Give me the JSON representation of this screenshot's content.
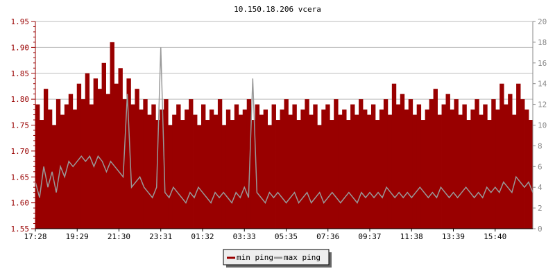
{
  "chart_data": {
    "type": "area",
    "title": "10.150.18.206 vcera",
    "x_tick_labels": [
      "17:28",
      "19:29",
      "21:30",
      "23:31",
      "01:32",
      "03:33",
      "05:35",
      "07:36",
      "09:37",
      "11:38",
      "13:39",
      "15:40"
    ],
    "y_left": {
      "ylim": [
        1.55,
        1.95
      ],
      "ticks": [
        "1.55",
        "1.60",
        "1.65",
        "1.70",
        "1.75",
        "1.80",
        "1.85",
        "1.90",
        "1.95"
      ],
      "color": "#990000"
    },
    "y_right": {
      "ylim": [
        0,
        20
      ],
      "ticks": [
        "0",
        "2",
        "4",
        "6",
        "8",
        "10",
        "12",
        "14",
        "16",
        "18",
        "20"
      ],
      "color": "#888888"
    },
    "grid": true,
    "legend": "bottom-center",
    "series": [
      {
        "name": "min ping",
        "axis": "left",
        "color": "#990000",
        "values": [
          1.79,
          1.76,
          1.82,
          1.78,
          1.75,
          1.8,
          1.77,
          1.79,
          1.81,
          1.78,
          1.83,
          1.8,
          1.85,
          1.79,
          1.84,
          1.82,
          1.87,
          1.81,
          1.91,
          1.83,
          1.86,
          1.8,
          1.84,
          1.79,
          1.82,
          1.78,
          1.8,
          1.77,
          1.79,
          1.76,
          1.78,
          1.8,
          1.75,
          1.77,
          1.79,
          1.76,
          1.78,
          1.8,
          1.77,
          1.75,
          1.79,
          1.76,
          1.78,
          1.77,
          1.8,
          1.75,
          1.78,
          1.76,
          1.79,
          1.77,
          1.78,
          1.8,
          1.76,
          1.79,
          1.77,
          1.78,
          1.75,
          1.79,
          1.76,
          1.78,
          1.8,
          1.77,
          1.79,
          1.76,
          1.78,
          1.8,
          1.77,
          1.79,
          1.75,
          1.78,
          1.79,
          1.76,
          1.8,
          1.77,
          1.78,
          1.76,
          1.79,
          1.77,
          1.8,
          1.78,
          1.77,
          1.79,
          1.76,
          1.78,
          1.8,
          1.77,
          1.83,
          1.79,
          1.81,
          1.78,
          1.8,
          1.77,
          1.79,
          1.76,
          1.78,
          1.8,
          1.82,
          1.77,
          1.79,
          1.81,
          1.78,
          1.8,
          1.77,
          1.79,
          1.76,
          1.78,
          1.8,
          1.77,
          1.79,
          1.76,
          1.8,
          1.78,
          1.83,
          1.79,
          1.81,
          1.77,
          1.83,
          1.8,
          1.78,
          1.76
        ]
      },
      {
        "name": "max ping",
        "axis": "right",
        "color": "#999999",
        "values": [
          4.5,
          3.0,
          6.0,
          4.0,
          5.5,
          3.5,
          6.0,
          5.0,
          6.5,
          6.0,
          6.5,
          7.0,
          6.5,
          7.0,
          6.0,
          7.0,
          6.5,
          5.5,
          6.5,
          6.0,
          5.5,
          5.0,
          13,
          4.0,
          4.5,
          5.0,
          4.0,
          3.5,
          3.0,
          4.0,
          17.5,
          3.5,
          3.0,
          4.0,
          3.5,
          3.0,
          2.5,
          3.5,
          3.0,
          4.0,
          3.5,
          3.0,
          2.5,
          3.5,
          3.0,
          3.5,
          3.0,
          2.5,
          3.5,
          3.0,
          4.0,
          3.0,
          14.5,
          3.5,
          3.0,
          2.5,
          3.5,
          3.0,
          3.5,
          3.0,
          2.5,
          3.0,
          3.5,
          2.5,
          3.0,
          3.5,
          2.5,
          3.0,
          3.5,
          2.5,
          3.0,
          3.5,
          3.0,
          2.5,
          3.0,
          3.5,
          3.0,
          2.5,
          3.5,
          3.0,
          3.5,
          3.0,
          3.5,
          3.0,
          4.0,
          3.5,
          3.0,
          3.5,
          3.0,
          3.5,
          3.0,
          3.5,
          4.0,
          3.5,
          3.0,
          3.5,
          3.0,
          4.0,
          3.5,
          3.0,
          3.5,
          3.0,
          3.5,
          4.0,
          3.5,
          3.0,
          3.5,
          3.0,
          4.0,
          3.5,
          4.0,
          3.5,
          4.5,
          4.0,
          3.5,
          5.0,
          4.5,
          4.0,
          4.5,
          3.5
        ]
      }
    ]
  }
}
